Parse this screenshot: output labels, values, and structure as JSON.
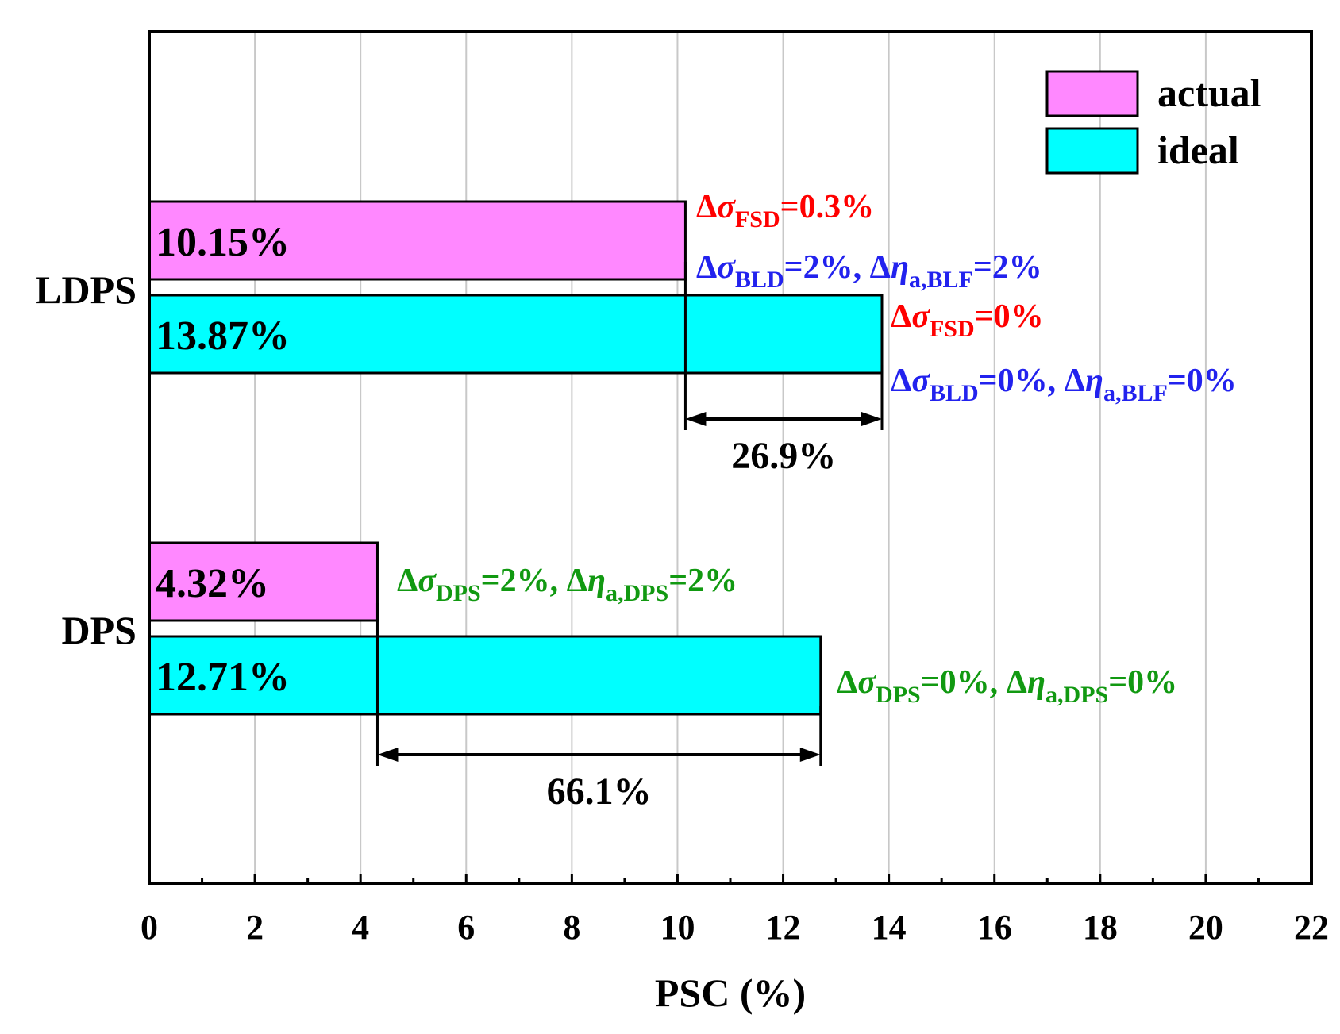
{
  "chart_data": {
    "type": "bar",
    "orientation": "horizontal",
    "title": "",
    "xlabel": "PSC (%)",
    "ylabel": "",
    "xlim": [
      0,
      22
    ],
    "x_ticks": [
      0,
      2,
      4,
      6,
      8,
      10,
      12,
      14,
      16,
      18,
      20,
      22
    ],
    "x_minor_step": 1,
    "grid": "vertical major",
    "legend_position": "top-right",
    "categories": [
      "LDPS",
      "DPS"
    ],
    "series": [
      {
        "name": "actual",
        "color": "#FF88FF",
        "values": [
          10.15,
          4.32
        ],
        "labels": [
          "10.15%",
          "4.32%"
        ]
      },
      {
        "name": "ideal",
        "color": "#00FFFF",
        "values": [
          13.87,
          12.71
        ],
        "labels": [
          "13.87%",
          "12.71%"
        ]
      }
    ],
    "gaps": [
      {
        "category": "LDPS",
        "from": 10.15,
        "to": 13.87,
        "label": "26.9%"
      },
      {
        "category": "DPS",
        "from": 4.32,
        "to": 12.71,
        "label": "66.1%"
      }
    ],
    "annotations": [
      {
        "category": "LDPS",
        "series": "actual",
        "color": "#FF0000",
        "parts": [
          {
            "t": "Δ"
          },
          {
            "t": "σ",
            "italic": true
          },
          {
            "t": "FSD",
            "sub": true
          },
          {
            "t": "=0.3%"
          }
        ]
      },
      {
        "category": "LDPS",
        "series": "actual",
        "color": "#2222EE",
        "parts": [
          {
            "t": "Δ"
          },
          {
            "t": "σ",
            "italic": true
          },
          {
            "t": "BLD",
            "sub": true
          },
          {
            "t": "=2%, Δ"
          },
          {
            "t": "η",
            "italic": true
          },
          {
            "t": "a,BLF",
            "sub": true
          },
          {
            "t": "=2%"
          }
        ]
      },
      {
        "category": "LDPS",
        "series": "ideal",
        "color": "#FF0000",
        "parts": [
          {
            "t": "Δ"
          },
          {
            "t": "σ",
            "italic": true
          },
          {
            "t": "FSD",
            "sub": true
          },
          {
            "t": "=0%"
          }
        ]
      },
      {
        "category": "LDPS",
        "series": "ideal",
        "color": "#2222EE",
        "parts": [
          {
            "t": "Δ"
          },
          {
            "t": "σ",
            "italic": true
          },
          {
            "t": "BLD",
            "sub": true
          },
          {
            "t": "=0%, Δ"
          },
          {
            "t": "η",
            "italic": true
          },
          {
            "t": "a,BLF",
            "sub": true
          },
          {
            "t": "=0%"
          }
        ]
      },
      {
        "category": "DPS",
        "series": "actual",
        "color": "#119911",
        "parts": [
          {
            "t": "Δ"
          },
          {
            "t": "σ",
            "italic": true
          },
          {
            "t": "DPS",
            "sub": true
          },
          {
            "t": "=2%, Δ"
          },
          {
            "t": "η",
            "italic": true
          },
          {
            "t": "a,DPS",
            "sub": true
          },
          {
            "t": "=2%"
          }
        ]
      },
      {
        "category": "DPS",
        "series": "ideal",
        "color": "#119911",
        "parts": [
          {
            "t": "Δ"
          },
          {
            "t": "σ",
            "italic": true
          },
          {
            "t": "DPS",
            "sub": true
          },
          {
            "t": "=0%, Δ"
          },
          {
            "t": "η",
            "italic": true
          },
          {
            "t": "a,DPS",
            "sub": true
          },
          {
            "t": "=0%"
          }
        ]
      }
    ]
  }
}
